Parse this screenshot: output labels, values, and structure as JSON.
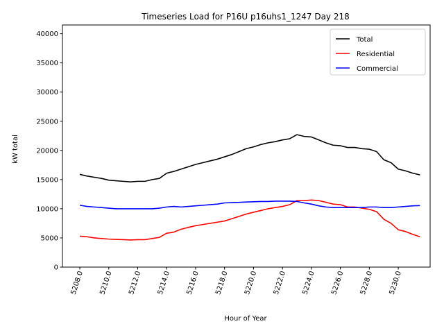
{
  "chart_data": {
    "type": "line",
    "title": "Timeseries Load for P16U p16uhs1_1247  Day 218",
    "xlabel": "Hour of Year",
    "ylabel": "kW total",
    "xlim": [
      5206.8,
      5232.2
    ],
    "ylim": [
      0,
      41500
    ],
    "xticks": [
      5208,
      5210,
      5212,
      5214,
      5216,
      5218,
      5220,
      5222,
      5224,
      5226,
      5228,
      5230
    ],
    "xtick_labels": [
      "5208.0",
      "5210.0",
      "5212.0",
      "5214.0",
      "5216.0",
      "5218.0",
      "5220.0",
      "5222.0",
      "5224.0",
      "5226.0",
      "5228.0",
      "5230.0"
    ],
    "yticks": [
      0,
      5000,
      10000,
      15000,
      20000,
      25000,
      30000,
      35000,
      40000
    ],
    "ytick_labels": [
      "0",
      "5000",
      "10000",
      "15000",
      "20000",
      "25000",
      "30000",
      "35000",
      "40000"
    ],
    "legend_position": "top-right",
    "x": [
      5208.0,
      5208.5,
      5209.0,
      5209.5,
      5210.0,
      5210.5,
      5211.0,
      5211.5,
      5212.0,
      5212.5,
      5213.0,
      5213.5,
      5214.0,
      5214.5,
      5215.0,
      5215.5,
      5216.0,
      5216.5,
      5217.0,
      5217.5,
      5218.0,
      5218.5,
      5219.0,
      5219.5,
      5220.0,
      5220.5,
      5221.0,
      5221.5,
      5222.0,
      5222.5,
      5223.0,
      5223.5,
      5224.0,
      5224.5,
      5225.0,
      5225.5,
      5226.0,
      5226.5,
      5227.0,
      5227.5,
      5228.0,
      5228.5,
      5229.0,
      5229.5,
      5230.0,
      5230.5,
      5231.0,
      5231.5
    ],
    "series": [
      {
        "name": "Total",
        "color": "#000000",
        "values": [
          15900,
          15600,
          15400,
          15200,
          14900,
          14800,
          14700,
          14600,
          14700,
          14700,
          15000,
          15200,
          16100,
          16400,
          16800,
          17200,
          17600,
          17900,
          18200,
          18500,
          18900,
          19300,
          19800,
          20300,
          20600,
          21000,
          21300,
          21500,
          21800,
          22000,
          22700,
          22400,
          22300,
          21800,
          21300,
          20900,
          20800,
          20500,
          20500,
          20300,
          20200,
          19800,
          18400,
          17900,
          16800,
          16500,
          16100,
          15800
        ]
      },
      {
        "name": "Residential",
        "color": "#ff0000",
        "values": [
          5300,
          5200,
          5000,
          4900,
          4800,
          4750,
          4700,
          4650,
          4700,
          4700,
          4900,
          5100,
          5800,
          6000,
          6500,
          6800,
          7100,
          7300,
          7500,
          7700,
          7900,
          8300,
          8700,
          9100,
          9400,
          9700,
          10000,
          10200,
          10400,
          10700,
          11400,
          11400,
          11500,
          11400,
          11100,
          10800,
          10700,
          10300,
          10300,
          10100,
          9900,
          9500,
          8200,
          7500,
          6400,
          6100,
          5600,
          5200
        ]
      },
      {
        "name": "Commercial",
        "color": "#0000ff",
        "values": [
          10600,
          10400,
          10300,
          10200,
          10100,
          10000,
          10000,
          10000,
          10000,
          10000,
          10000,
          10100,
          10300,
          10400,
          10300,
          10400,
          10500,
          10600,
          10700,
          10800,
          11000,
          11050,
          11100,
          11150,
          11200,
          11250,
          11250,
          11300,
          11300,
          11300,
          11250,
          11000,
          10800,
          10500,
          10300,
          10200,
          10200,
          10200,
          10200,
          10200,
          10300,
          10300,
          10200,
          10200,
          10300,
          10400,
          10500,
          10550
        ]
      }
    ]
  }
}
